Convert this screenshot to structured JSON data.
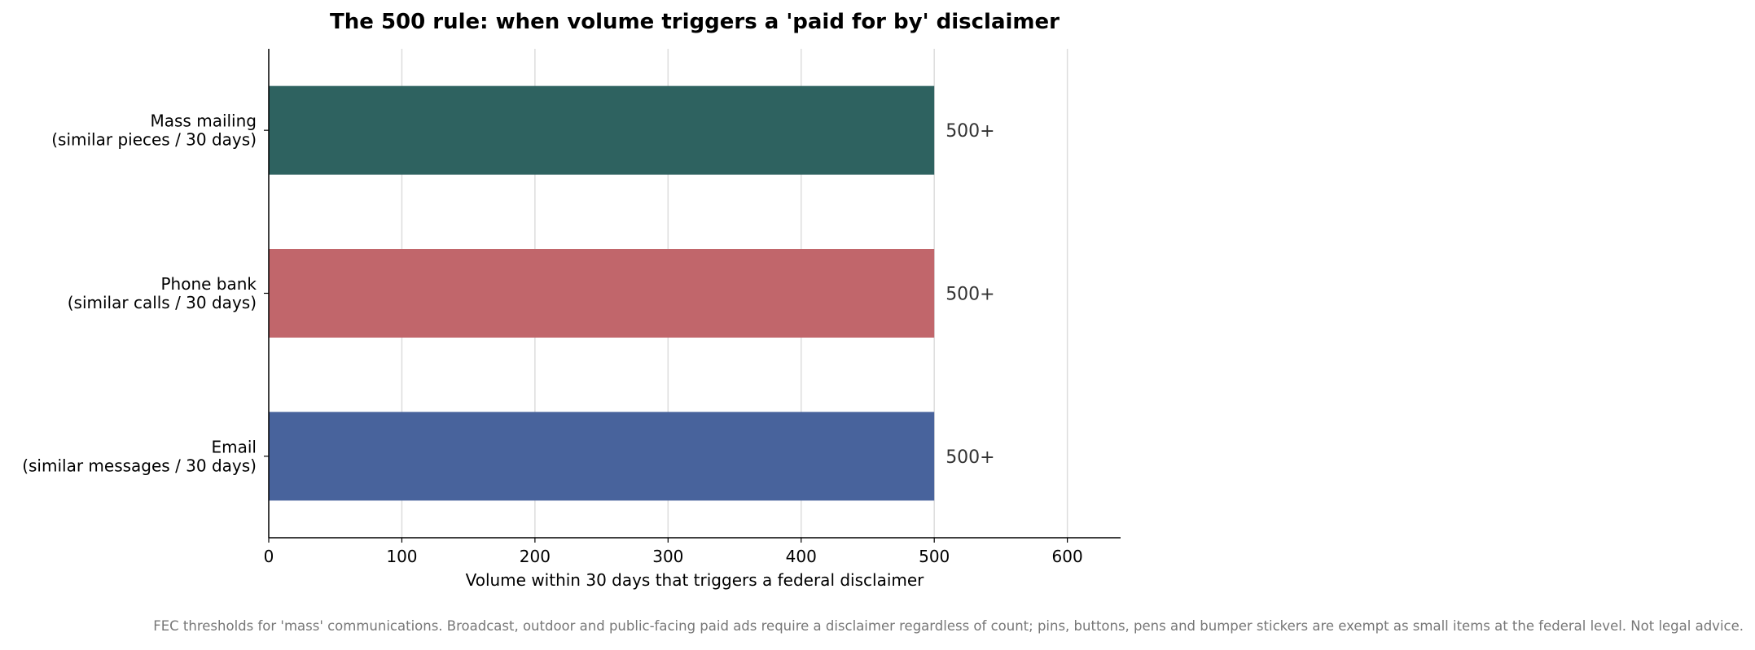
{
  "chart_data": {
    "type": "bar",
    "orientation": "horizontal",
    "title": "The 500 rule: when volume triggers a 'paid for by' disclaimer",
    "xlabel": "Volume within 30 days that triggers a federal disclaimer",
    "ylabel": "",
    "xlim": [
      0,
      640
    ],
    "xticks": [
      0,
      100,
      200,
      300,
      400,
      500,
      600
    ],
    "grid": "vertical",
    "categories": [
      [
        "Mass mailing",
        "(similar pieces / 30 days)"
      ],
      [
        "Phone bank",
        "(similar calls / 30 days)"
      ],
      [
        "Email",
        "(similar messages / 30 days)"
      ]
    ],
    "values": [
      500,
      500,
      500
    ],
    "data_labels": [
      "500+",
      "500+",
      "500+"
    ],
    "colors": [
      "#2e6260",
      "#c1666b",
      "#48639c"
    ],
    "footnote": "FEC thresholds for 'mass' communications. Broadcast, outdoor and public-facing paid ads require a disclaimer regardless of count; pins, buttons, pens and bumper stickers are exempt as small items at the federal level. Not legal advice."
  }
}
